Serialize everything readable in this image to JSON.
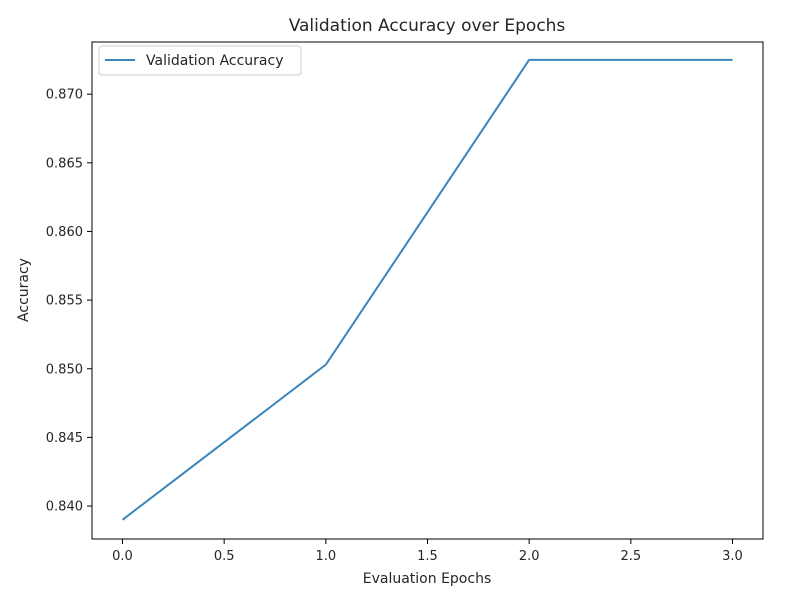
{
  "chart_data": {
    "type": "line",
    "title": "Validation Accuracy over Epochs",
    "xlabel": "Evaluation Epochs",
    "ylabel": "Accuracy",
    "xlim": [
      -0.15,
      3.15
    ],
    "ylim": [
      0.8376,
      0.8738
    ],
    "xticks": [
      0.0,
      0.5,
      1.0,
      1.5,
      2.0,
      2.5,
      3.0
    ],
    "xtick_labels": [
      "0.0",
      "0.5",
      "1.0",
      "1.5",
      "2.0",
      "2.5",
      "3.0"
    ],
    "yticks": [
      0.84,
      0.845,
      0.85,
      0.855,
      0.86,
      0.865,
      0.87
    ],
    "ytick_labels": [
      "0.840",
      "0.845",
      "0.850",
      "0.855",
      "0.860",
      "0.865",
      "0.870"
    ],
    "grid": false,
    "legend_position": "top-left",
    "series": [
      {
        "name": "Validation Accuracy",
        "color": "#3a86bd",
        "x": [
          0,
          1,
          2,
          3
        ],
        "y": [
          0.839,
          0.8503,
          0.8725,
          0.8725
        ]
      }
    ]
  }
}
